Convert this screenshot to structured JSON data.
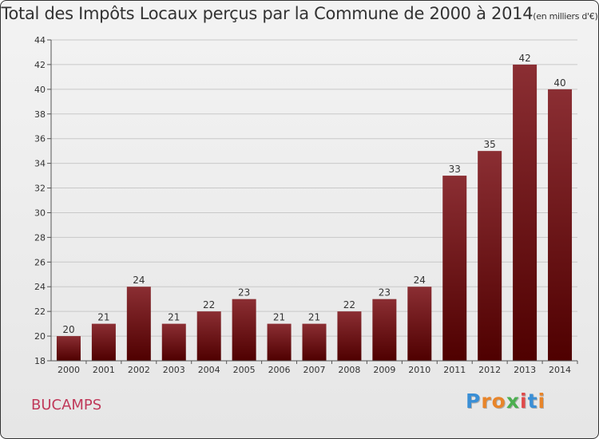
{
  "title": "Total des Impôts Locaux perçus par la Commune de 2000 à 2014",
  "title_unit": "(en milliers d'€)",
  "commune": "BUCAMPS",
  "logo": {
    "text": "Proxiti",
    "letter_colors": [
      "#3a8fd6",
      "#e8852a",
      "#e8852a",
      "#4caf50",
      "#e04a4a",
      "#3a8fd6",
      "#e8852a"
    ]
  },
  "chart_data": {
    "type": "bar",
    "title": "Total des Impôts Locaux perçus par la Commune de 2000 à 2014",
    "categories": [
      "2000",
      "2001",
      "2002",
      "2003",
      "2004",
      "2005",
      "2006",
      "2007",
      "2008",
      "2009",
      "2010",
      "2011",
      "2012",
      "2013",
      "2014"
    ],
    "values": [
      20,
      21,
      24,
      21,
      22,
      23,
      21,
      21,
      22,
      23,
      24,
      33,
      35,
      42,
      40
    ],
    "ylim": [
      18,
      44
    ],
    "yticks": [
      18,
      20,
      22,
      24,
      26,
      28,
      30,
      32,
      34,
      36,
      38,
      40,
      42,
      44
    ],
    "grid": true,
    "bar_color": "#7a1f1f"
  }
}
